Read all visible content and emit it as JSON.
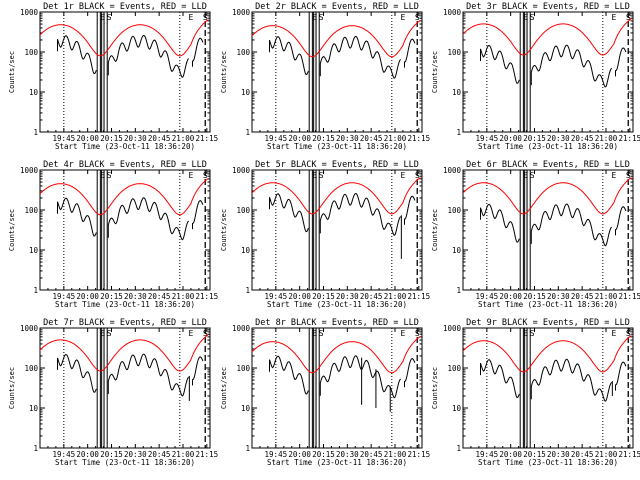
{
  "chart_data": {
    "type": "line",
    "x_tick_labels": [
      "19:45",
      "20:00",
      "20:15",
      "20:30",
      "20:45",
      "21:00",
      "21:15"
    ],
    "x_ticks_minutes": [
      105,
      120,
      135,
      150,
      165,
      180,
      195
    ],
    "xlim_minutes": [
      90,
      197
    ],
    "xlabel": "Start Time (23-Oct-11 18:36:20)",
    "ylabel": "Counts/sec",
    "yscale": "log",
    "ylim": [
      1,
      1000
    ],
    "y_tick_labels": [
      "1",
      "10",
      "100",
      "1000"
    ],
    "markers": [
      "E",
      "S"
    ],
    "colors": {
      "events": "#000000",
      "lld": "#ff0000"
    },
    "panels": [
      {
        "title": "Det 1r  BLACK = Events, RED = LLD",
        "lld_base": 1.0,
        "events_ratio": 0.55,
        "dropouts": []
      },
      {
        "title": "Det 2r  BLACK = Events, RED = LLD",
        "lld_base": 0.95,
        "events_ratio": 0.55,
        "dropouts": []
      },
      {
        "title": "Det 3r  BLACK = Events, RED = LLD",
        "lld_base": 1.05,
        "events_ratio": 0.3,
        "dropouts": []
      },
      {
        "title": "Det 4r  BLACK = Events, RED = LLD",
        "lld_base": 0.95,
        "events_ratio": 0.45,
        "dropouts": []
      },
      {
        "title": "Det 5r  BLACK = Events, RED = LLD",
        "lld_base": 1.0,
        "events_ratio": 0.55,
        "dropouts": [
          [
            184,
            6
          ]
        ]
      },
      {
        "title": "Det 6r  BLACK = Events, RED = LLD",
        "lld_base": 1.0,
        "events_ratio": 0.3,
        "dropouts": []
      },
      {
        "title": "Det 7r  BLACK = Events, RED = LLD",
        "lld_base": 1.05,
        "events_ratio": 0.45,
        "dropouts": [
          [
            184,
            15
          ]
        ]
      },
      {
        "title": "Det 8r  BLACK = Events, RED = LLD",
        "lld_base": 0.95,
        "events_ratio": 0.45,
        "dropouts": [
          [
            159,
            12
          ],
          [
            168,
            10
          ],
          [
            177,
            8
          ]
        ]
      },
      {
        "title": "Det 9r  BLACK = Events, RED = LLD",
        "lld_base": 1.0,
        "events_ratio": 0.35,
        "dropouts": [
          [
            184,
            20
          ]
        ]
      }
    ]
  }
}
